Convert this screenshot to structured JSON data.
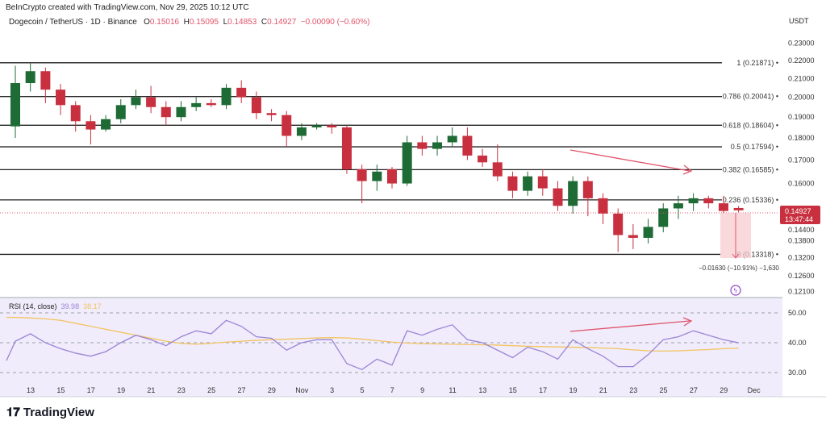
{
  "header": {
    "credit": "BeInCrypto created with TradingView.com, Nov 29, 2025 10:12 UTC",
    "symbol": "Dogecoin / TetherUS · 1D · Binance",
    "o_label": "O",
    "o": "0.15016",
    "h_label": "H",
    "h": "0.15095",
    "l_label": "L",
    "l": "0.14853",
    "c_label": "C",
    "c": "0.14927",
    "change": "−0.00090 (−0.60%)",
    "currency": "USDT"
  },
  "price_tag": {
    "price": "0.14927",
    "countdown": "13:47:44"
  },
  "measure_label": "−0.01630 (−10.91%) −1,630",
  "rsi": {
    "label": "RSI (14, close)",
    "value": "39.98",
    "ma_value": "38.17"
  },
  "footer": {
    "logo": "TradingView"
  },
  "colors": {
    "up": "#1e6b36",
    "down": "#c8303f",
    "rsi": "#9a85d6",
    "rsi_ma": "#f3c35f",
    "annot": "#e0546a",
    "bg_rsi": "#f0ecfb"
  },
  "chart_data": [
    {
      "type": "candlestick",
      "scale": "log",
      "ylim": [
        0.121,
        0.235
      ],
      "y_ticks": [
        "0.23000",
        "0.22000",
        "0.21000",
        "0.20000",
        "0.19000",
        "0.18000",
        "0.17000",
        "0.16000",
        "0.14400",
        "0.13800",
        "0.13200",
        "0.12600",
        "0.12100"
      ],
      "x_ticks": [
        "13",
        "15",
        "17",
        "19",
        "21",
        "23",
        "25",
        "27",
        "29",
        "Nov",
        "3",
        "5",
        "7",
        "9",
        "11",
        "13",
        "15",
        "17",
        "19",
        "21",
        "23",
        "25",
        "27",
        "29",
        "Dec"
      ],
      "fib_levels": [
        {
          "label": "1 (0.21871)",
          "value": 0.21871
        },
        {
          "label": "0.786 (0.20041)",
          "value": 0.20041
        },
        {
          "label": "0.618 (0.18604)",
          "value": 0.18604
        },
        {
          "label": "0.5 (0.17594)",
          "value": 0.17594
        },
        {
          "label": "0.382 (0.16585)",
          "value": 0.16585
        },
        {
          "label": "0.236 (0.15336)",
          "value": 0.15336
        },
        {
          "label": "0 (0.13318)",
          "value": 0.13318
        }
      ],
      "ohlc": [
        [
          0.1855,
          0.217,
          0.18,
          0.2075
        ],
        [
          0.2075,
          0.2187,
          0.203,
          0.214
        ],
        [
          0.214,
          0.216,
          0.197,
          0.204
        ],
        [
          0.204,
          0.207,
          0.191,
          0.196
        ],
        [
          0.196,
          0.198,
          0.183,
          0.188
        ],
        [
          0.188,
          0.191,
          0.177,
          0.184
        ],
        [
          0.184,
          0.191,
          0.183,
          0.189
        ],
        [
          0.189,
          0.199,
          0.187,
          0.196
        ],
        [
          0.196,
          0.204,
          0.194,
          0.2
        ],
        [
          0.2,
          0.206,
          0.192,
          0.195
        ],
        [
          0.195,
          0.198,
          0.186,
          0.19
        ],
        [
          0.19,
          0.198,
          0.188,
          0.195
        ],
        [
          0.195,
          0.2,
          0.193,
          0.197
        ],
        [
          0.197,
          0.199,
          0.195,
          0.196
        ],
        [
          0.196,
          0.207,
          0.194,
          0.205
        ],
        [
          0.205,
          0.209,
          0.197,
          0.2
        ],
        [
          0.2,
          0.203,
          0.189,
          0.192
        ],
        [
          0.192,
          0.194,
          0.188,
          0.191
        ],
        [
          0.191,
          0.193,
          0.176,
          0.181
        ],
        [
          0.181,
          0.187,
          0.179,
          0.185
        ],
        [
          0.185,
          0.187,
          0.184,
          0.186
        ],
        [
          0.186,
          0.187,
          0.182,
          0.185
        ],
        [
          0.185,
          0.186,
          0.164,
          0.166
        ],
        [
          0.166,
          0.168,
          0.152,
          0.161
        ],
        [
          0.161,
          0.168,
          0.157,
          0.165
        ],
        [
          0.166,
          0.167,
          0.158,
          0.16
        ],
        [
          0.16,
          0.181,
          0.159,
          0.178
        ],
        [
          0.178,
          0.181,
          0.172,
          0.175
        ],
        [
          0.175,
          0.181,
          0.172,
          0.178
        ],
        [
          0.178,
          0.185,
          0.176,
          0.181
        ],
        [
          0.181,
          0.185,
          0.17,
          0.172
        ],
        [
          0.172,
          0.175,
          0.167,
          0.169
        ],
        [
          0.169,
          0.177,
          0.161,
          0.163
        ],
        [
          0.163,
          0.165,
          0.154,
          0.157
        ],
        [
          0.157,
          0.165,
          0.155,
          0.163
        ],
        [
          0.163,
          0.166,
          0.155,
          0.158
        ],
        [
          0.158,
          0.161,
          0.149,
          0.151
        ],
        [
          0.151,
          0.163,
          0.148,
          0.161
        ],
        [
          0.161,
          0.163,
          0.147,
          0.154
        ],
        [
          0.154,
          0.156,
          0.144,
          0.148
        ],
        [
          0.148,
          0.15,
          0.134,
          0.14
        ],
        [
          0.14,
          0.144,
          0.135,
          0.139
        ],
        [
          0.139,
          0.146,
          0.137,
          0.143
        ],
        [
          0.143,
          0.152,
          0.141,
          0.15
        ],
        [
          0.15,
          0.155,
          0.146,
          0.152
        ],
        [
          0.152,
          0.156,
          0.149,
          0.154
        ],
        [
          0.154,
          0.155,
          0.15,
          0.152
        ],
        [
          0.152,
          0.155,
          0.148,
          0.149
        ],
        [
          0.15016,
          0.15095,
          0.14853,
          0.14927
        ]
      ]
    },
    {
      "type": "line",
      "ylim": [
        25,
        55
      ],
      "y_ticks": [
        "50.00",
        "40.00",
        "30.00"
      ],
      "series": [
        {
          "name": "RSI",
          "values": [
            40.5,
            43,
            40,
            38,
            36.5,
            35.5,
            37,
            40,
            42.5,
            41,
            39,
            42,
            44,
            43,
            47.5,
            45.5,
            42,
            41.5,
            37.5,
            40,
            41,
            41,
            33,
            31,
            34.5,
            32.5,
            44,
            42.5,
            44.5,
            46,
            41,
            40,
            37.5,
            35,
            38.5,
            37,
            34.5,
            41,
            38,
            35.5,
            32,
            32,
            36,
            41,
            42,
            44,
            42.5,
            41,
            39.98
          ]
        },
        {
          "name": "RSI MA",
          "values": [
            48.5,
            48.3,
            48,
            47.5,
            46.5,
            45.5,
            44.5,
            43.5,
            42.5,
            41.5,
            40.5,
            39.8,
            39.5,
            39.8,
            40.2,
            40.5,
            40.8,
            41,
            41.2,
            41.4,
            41.6,
            41.7,
            41.6,
            41.2,
            40.7,
            40.2,
            39.9,
            39.7,
            39.6,
            39.5,
            39.4,
            39.3,
            39.2,
            39.0,
            38.8,
            38.7,
            38.6,
            38.5,
            38.4,
            38.2,
            38.0,
            37.6,
            37.3,
            37.2,
            37.3,
            37.5,
            37.7,
            38.0,
            38.17
          ]
        }
      ]
    }
  ]
}
